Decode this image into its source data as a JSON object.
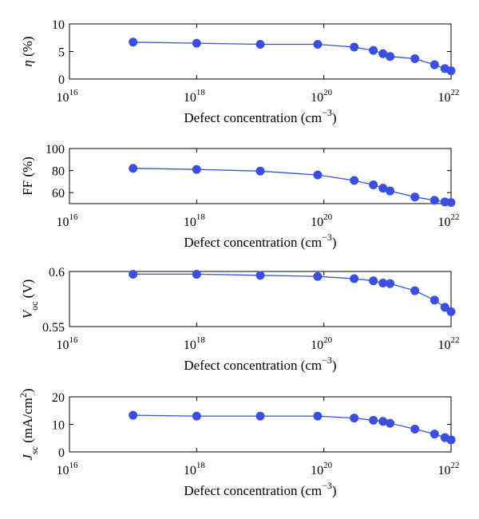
{
  "chart_data": [
    {
      "type": "line",
      "ylabel": "η (%)",
      "ylabel_parts": [
        {
          "text": "η",
          "italic": true
        },
        {
          "text": " (%)"
        }
      ],
      "xlabel": "Defect concentration (cm⁻³)",
      "xlabel_base": "Defect concentration (cm",
      "xlabel_sup": "−3",
      "xlabel_close": ")",
      "x_scale": "log",
      "xlim": [
        1e+16,
        1e+22
      ],
      "xticks": [
        1e+16,
        1e+18,
        1e+20,
        1e+22
      ],
      "ylim": [
        0,
        10
      ],
      "yticks": [
        0,
        5,
        10
      ],
      "grid": false,
      "series": [
        {
          "color": "#3a4fe0",
          "points": [
            {
              "x": 1e+17,
              "y": 6.7
            },
            {
              "x": 1e+18,
              "y": 6.5
            },
            {
              "x": 1e+19,
              "y": 6.3
            },
            {
              "x": 8e+19,
              "y": 6.3
            },
            {
              "x": 3e+20,
              "y": 5.8
            },
            {
              "x": 6e+20,
              "y": 5.2
            },
            {
              "x": 8.5e+20,
              "y": 4.6
            },
            {
              "x": 1.1e+21,
              "y": 4.1
            },
            {
              "x": 2.7e+21,
              "y": 3.7
            },
            {
              "x": 5.5e+21,
              "y": 2.6
            },
            {
              "x": 8e+21,
              "y": 1.9
            },
            {
              "x": 1e+22,
              "y": 1.5
            }
          ]
        }
      ]
    },
    {
      "type": "line",
      "ylabel": "FF (%)",
      "ylabel_parts": [
        {
          "text": "FF (%)"
        }
      ],
      "xlabel": "Defect concentration (cm⁻³)",
      "xlabel_base": "Defect concentration (cm",
      "xlabel_sup": "−3",
      "xlabel_close": ")",
      "x_scale": "log",
      "xlim": [
        1e+16,
        1e+22
      ],
      "xticks": [
        1e+16,
        1e+18,
        1e+20,
        1e+22
      ],
      "ylim": [
        50,
        100
      ],
      "yticks": [
        60,
        80,
        100
      ],
      "grid": false,
      "series": [
        {
          "color": "#3a4fe0",
          "points": [
            {
              "x": 1e+17,
              "y": 82
            },
            {
              "x": 1e+18,
              "y": 81
            },
            {
              "x": 1e+19,
              "y": 79.5
            },
            {
              "x": 8e+19,
              "y": 76
            },
            {
              "x": 3e+20,
              "y": 71
            },
            {
              "x": 6e+20,
              "y": 67
            },
            {
              "x": 8.5e+20,
              "y": 64
            },
            {
              "x": 1.1e+21,
              "y": 61.5
            },
            {
              "x": 2.7e+21,
              "y": 56
            },
            {
              "x": 5.5e+21,
              "y": 53
            },
            {
              "x": 8e+21,
              "y": 51.5
            },
            {
              "x": 1e+22,
              "y": 51
            }
          ]
        }
      ]
    },
    {
      "type": "line",
      "ylabel": "Voc (V)",
      "ylabel_parts": [
        {
          "text": "V",
          "italic": true
        },
        {
          "text": "oc",
          "sub": true
        },
        {
          "text": "  (V)"
        }
      ],
      "xlabel": "Defect concentration (cm⁻³)",
      "xlabel_base": "Defect concentration (cm",
      "xlabel_sup": "−3",
      "xlabel_close": ")",
      "x_scale": "log",
      "xlim": [
        1e+16,
        1e+22
      ],
      "xticks": [
        1e+16,
        1e+18,
        1e+20,
        1e+22
      ],
      "ylim": [
        0.55,
        0.6
      ],
      "yticks": [
        0.55,
        0.6
      ],
      "grid": false,
      "series": [
        {
          "color": "#3a4fe0",
          "points": [
            {
              "x": 1e+17,
              "y": 0.5975
            },
            {
              "x": 1e+18,
              "y": 0.5975
            },
            {
              "x": 1e+19,
              "y": 0.5965
            },
            {
              "x": 8e+19,
              "y": 0.5955
            },
            {
              "x": 3e+20,
              "y": 0.5935
            },
            {
              "x": 6e+20,
              "y": 0.5915
            },
            {
              "x": 8.5e+20,
              "y": 0.5895
            },
            {
              "x": 1.1e+21,
              "y": 0.589
            },
            {
              "x": 2.7e+21,
              "y": 0.5825
            },
            {
              "x": 5.5e+21,
              "y": 0.574
            },
            {
              "x": 8e+21,
              "y": 0.5675
            },
            {
              "x": 1e+22,
              "y": 0.5635
            }
          ]
        }
      ]
    },
    {
      "type": "line",
      "ylabel": "Jsc (mA/cm2)",
      "ylabel_parts": [
        {
          "text": "J",
          "italic": true
        },
        {
          "text": "sc",
          "sub": true
        },
        {
          "text": " (mA/cm"
        },
        {
          "text": "2",
          "sup": true
        },
        {
          "text": ")"
        }
      ],
      "xlabel": "Defect concentration (cm⁻³)",
      "xlabel_base": "Defect concentration (cm",
      "xlabel_sup": "−3",
      "xlabel_close": ")",
      "x_scale": "log",
      "xlim": [
        1e+16,
        1e+22
      ],
      "xticks": [
        1e+16,
        1e+18,
        1e+20,
        1e+22
      ],
      "ylim": [
        0,
        20
      ],
      "yticks": [
        0,
        10,
        20
      ],
      "grid": false,
      "series": [
        {
          "color": "#3a4fe0",
          "points": [
            {
              "x": 1e+17,
              "y": 13.3
            },
            {
              "x": 1e+18,
              "y": 13.0
            },
            {
              "x": 1e+19,
              "y": 13.0
            },
            {
              "x": 8e+19,
              "y": 13.0
            },
            {
              "x": 3e+20,
              "y": 12.3
            },
            {
              "x": 6e+20,
              "y": 11.5
            },
            {
              "x": 8.5e+20,
              "y": 11.1
            },
            {
              "x": 1.1e+21,
              "y": 10.4
            },
            {
              "x": 2.7e+21,
              "y": 8.3
            },
            {
              "x": 5.5e+21,
              "y": 6.5
            },
            {
              "x": 8e+21,
              "y": 5.2
            },
            {
              "x": 1e+22,
              "y": 4.4
            }
          ]
        }
      ]
    }
  ]
}
